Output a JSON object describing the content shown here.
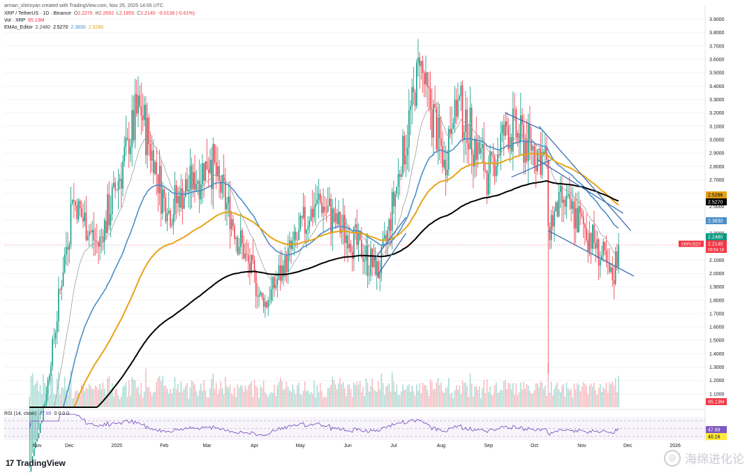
{
  "header": {
    "author_line": "arman_shirinyan created with TradingView.com, Nov 25, 2025 14:05 UTC",
    "symbol": "XRP / TetherUS · 1D · Binance",
    "ohlc": {
      "o_label": "O",
      "o": "2.2276",
      "h_label": "H",
      "h": "2.2692",
      "l_label": "L",
      "l": "2.1855",
      "c_label": "C",
      "c": "2.2140",
      "change": "-0.0136 (-0.61%)"
    },
    "vol_label": "Vol · XRP",
    "vol_value": "85.13M",
    "emas_label": "EMAs_Editor",
    "emas_values": [
      "2.2480",
      "2.5270",
      "2.3830",
      "2.5286"
    ]
  },
  "rsi_header": {
    "label": "RSI (14, close)",
    "value": "47.89",
    "extras": "0 0 0 0"
  },
  "footer": {
    "brand": "TradingView",
    "brand_mark": "17",
    "watermark": "海绵进化论"
  },
  "colors": {
    "up": "#089981",
    "down": "#f23645",
    "ema20": "#9e9e9e",
    "ema50": "#4b8ec7",
    "ema100": "#e8a317",
    "ema200": "#000000",
    "trend": "#3d6fb0",
    "rsi": "#7e57c2"
  },
  "chart_data": {
    "type": "candlestick",
    "timeframe": "1D",
    "y_axis": {
      "ylim": [
        1.0,
        3.95
      ],
      "ticks": [
        "3.9000",
        "3.8000",
        "3.7000",
        "3.6000",
        "3.5000",
        "3.4000",
        "3.3000",
        "3.2000",
        "3.1000",
        "3.0000",
        "2.9000",
        "2.8000",
        "2.7000",
        "2.6000",
        "2.5000",
        "2.4000",
        "2.3000",
        "2.2000",
        "2.1000",
        "2.0000",
        "1.9000",
        "1.8000",
        "1.7000",
        "1.6000",
        "1.5000",
        "1.4000",
        "1.3000",
        "1.2000",
        "1.1000"
      ]
    },
    "x_axis": {
      "labels": [
        "Nov",
        "Dec",
        "2025",
        "Feb",
        "Mar",
        "Apr",
        "May",
        "Jun",
        "Jul",
        "Aug",
        "Sep",
        "Oct",
        "Nov",
        "Dec",
        "2026"
      ]
    },
    "price_labels": [
      {
        "text": "2.5286",
        "value": 2.5286,
        "color": "#e8a317"
      },
      {
        "text": "2.5270",
        "value": 2.527,
        "color": "#000000"
      },
      {
        "text": "2.3830",
        "value": 2.383,
        "color": "#4b8ec7"
      },
      {
        "text": "2.2480",
        "value": 2.248,
        "color": "#089981"
      },
      {
        "text": "2.2140",
        "value": 2.214,
        "color": "#f23645",
        "symbol": "XRPUSDT",
        "countdown": "09:54:16"
      },
      {
        "text": "85.13M",
        "value": null,
        "color": "#f23645",
        "pane": "volume"
      }
    ],
    "rsi": {
      "label": "RSI (14, close)",
      "levels": [
        70,
        50,
        30
      ],
      "last": 47.89,
      "labels": [
        {
          "text": "47.89",
          "value": 47.89
        },
        {
          "text": "40.16",
          "value": 40.16
        }
      ]
    },
    "series": [
      {
        "name": "EMA 20",
        "values_note": "computed from closes"
      },
      {
        "name": "EMA 50"
      },
      {
        "name": "EMA 100"
      },
      {
        "name": "EMA 200"
      }
    ],
    "key_points": [
      {
        "date": "2024-11-05",
        "close": 0.52
      },
      {
        "date": "2024-11-16",
        "close": 1.1
      },
      {
        "date": "2024-12-03",
        "close": 2.55
      },
      {
        "date": "2024-12-20",
        "close": 2.2
      },
      {
        "date": "2025-01-16",
        "close": 3.25
      },
      {
        "date": "2025-02-03",
        "close": 2.45
      },
      {
        "date": "2025-03-03",
        "close": 2.85
      },
      {
        "date": "2025-04-07",
        "close": 1.75
      },
      {
        "date": "2025-05-12",
        "close": 2.55
      },
      {
        "date": "2025-06-22",
        "close": 2.0
      },
      {
        "date": "2025-07-18",
        "close": 3.55
      },
      {
        "date": "2025-08-03",
        "close": 2.85
      },
      {
        "date": "2025-08-10",
        "close": 3.3
      },
      {
        "date": "2025-09-01",
        "close": 2.75
      },
      {
        "date": "2025-09-13",
        "close": 3.1
      },
      {
        "date": "2025-10-09",
        "close": 2.85
      },
      {
        "date": "2025-10-10",
        "close": 2.35,
        "low": 1.25
      },
      {
        "date": "2025-10-20",
        "close": 2.55
      },
      {
        "date": "2025-11-06",
        "close": 2.3
      },
      {
        "date": "2025-11-21",
        "close": 1.95
      },
      {
        "date": "2025-11-25",
        "close": 2.214
      }
    ],
    "trendlines": [
      {
        "name": "upper-falling-1",
        "from": {
          "date": "2025-09-12",
          "price": 3.2
        },
        "to": {
          "date": "2025-10-05",
          "price": 3.08
        }
      },
      {
        "name": "upper-falling-2",
        "from": {
          "date": "2025-10-04",
          "price": 3.1
        },
        "to": {
          "date": "2025-12-03",
          "price": 2.32
        }
      },
      {
        "name": "lower-channel",
        "from": {
          "date": "2025-10-10",
          "price": 2.32
        },
        "to": {
          "date": "2025-12-05",
          "price": 1.98
        }
      },
      {
        "name": "inner-channel",
        "from": {
          "date": "2025-10-03",
          "price": 2.85
        },
        "to": {
          "date": "2025-11-28",
          "price": 2.45
        }
      },
      {
        "name": "upper-small",
        "from": {
          "date": "2025-09-16",
          "price": 2.72
        },
        "to": {
          "date": "2025-10-12",
          "price": 2.85
        }
      },
      {
        "name": "rising-wedge-upper",
        "from": {
          "date": "2025-06-18",
          "price": 2.1
        },
        "to": {
          "date": "2025-07-09",
          "price": 2.42
        }
      },
      {
        "name": "rising-wedge-lower",
        "from": {
          "date": "2025-06-20",
          "price": 1.98
        },
        "to": {
          "date": "2025-07-09",
          "price": 2.3
        }
      }
    ]
  }
}
